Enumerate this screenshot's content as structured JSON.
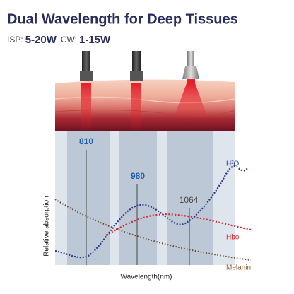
{
  "header": {
    "title": "Dual Wavelength for Deep Tissues",
    "specs": [
      {
        "label": "ISP:",
        "value": "5-20W"
      },
      {
        "label": "CW:",
        "value": "1-15W"
      }
    ]
  },
  "diagram": {
    "wavelengths": [
      "810",
      "980",
      "1064"
    ],
    "curves": [
      "H²O",
      "Hbo",
      "Melanin"
    ],
    "y_axis": "Relative absorption",
    "x_axis": "Wavelength(nm)"
  }
}
